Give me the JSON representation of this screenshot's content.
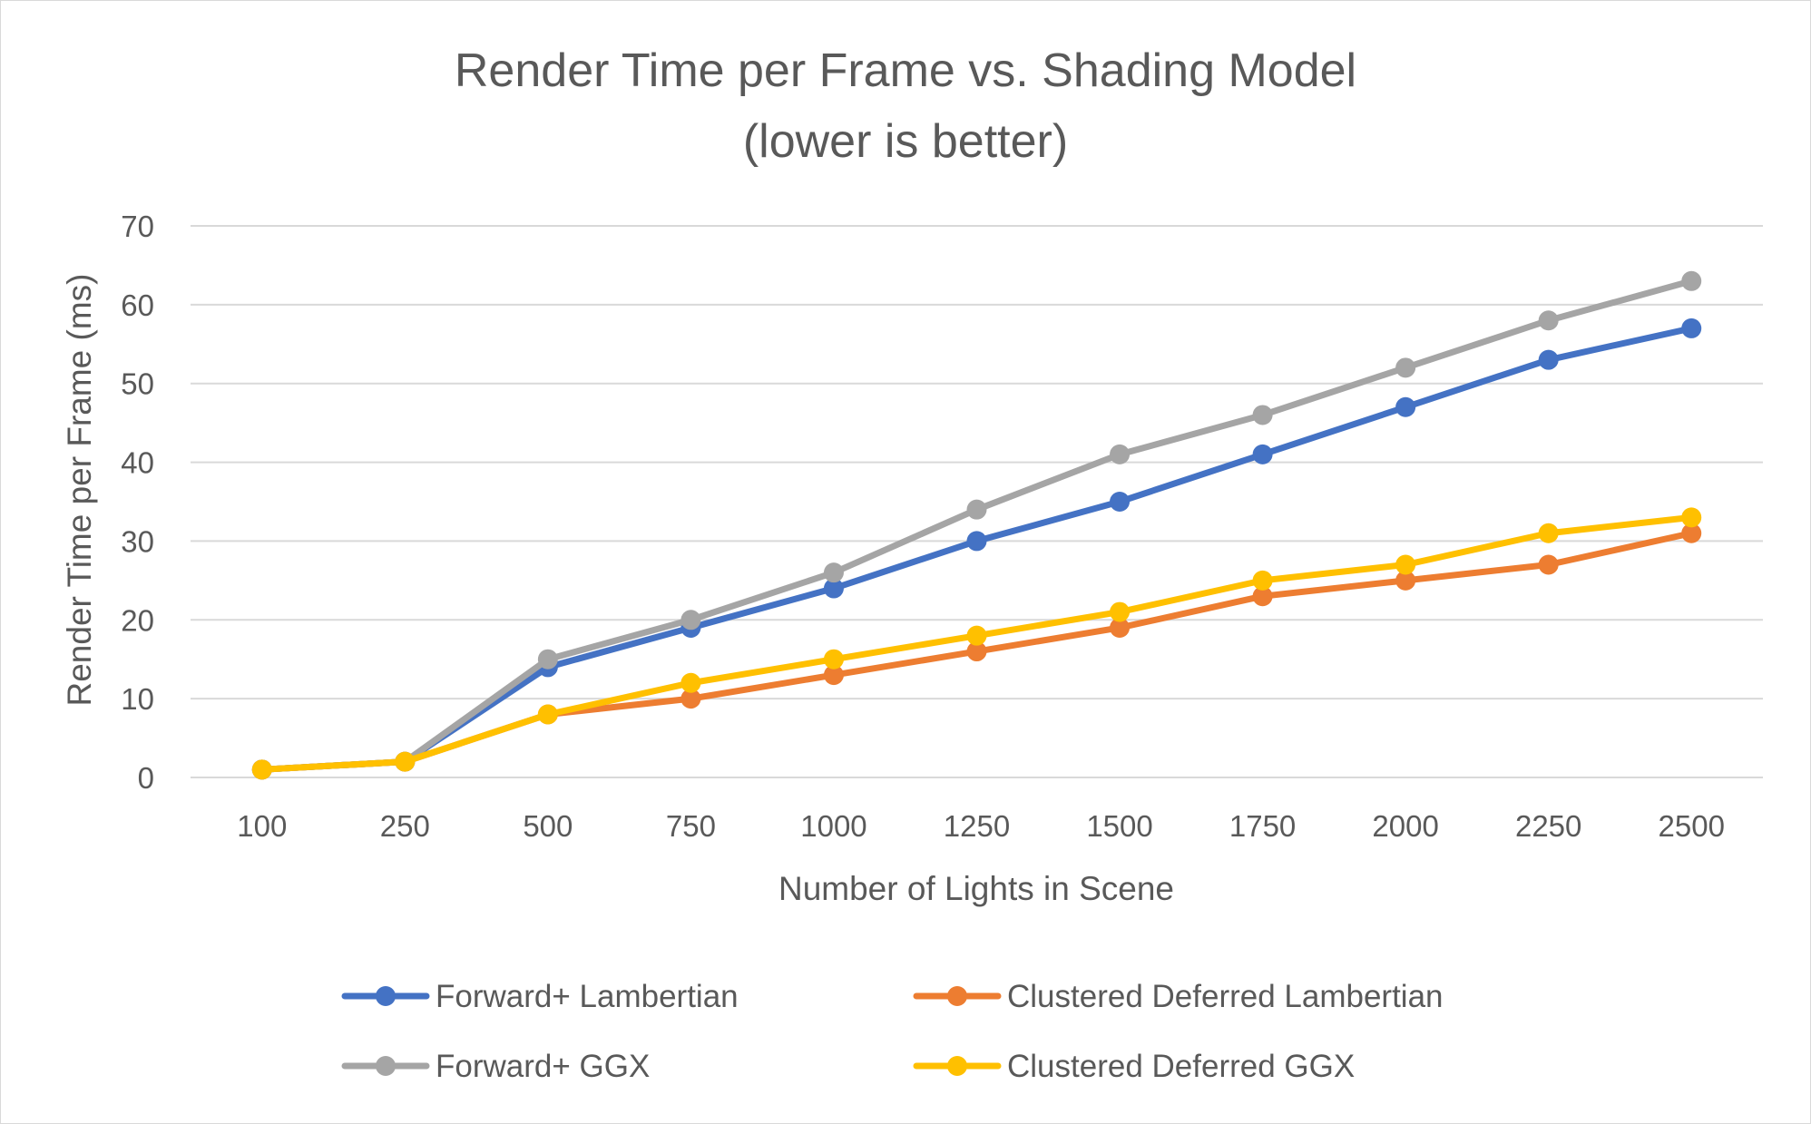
{
  "chart_data": {
    "type": "line",
    "title": "Render Time per Frame vs. Shading Model",
    "subtitle": "(lower is better)",
    "xlabel": "Number of Lights in Scene",
    "ylabel": "Render Time per Frame (ms)",
    "categories": [
      "100",
      "250",
      "500",
      "750",
      "1000",
      "1250",
      "1500",
      "1750",
      "2000",
      "2250",
      "2500"
    ],
    "ylim": [
      0,
      70
    ],
    "yticks": [
      0,
      10,
      20,
      30,
      40,
      50,
      60,
      70
    ],
    "grid": true,
    "legend_position": "bottom",
    "series": [
      {
        "name": "Forward+ Lambertian",
        "color": "#4472c4",
        "values": [
          1,
          2,
          14,
          19,
          24,
          30,
          35,
          41,
          47,
          53,
          57
        ]
      },
      {
        "name": "Clustered Deferred Lambertian",
        "color": "#ed7d31",
        "values": [
          1,
          2,
          8,
          10,
          13,
          16,
          19,
          23,
          25,
          27,
          31
        ]
      },
      {
        "name": "Forward+ GGX",
        "color": "#a5a5a5",
        "values": [
          1,
          2,
          15,
          20,
          26,
          34,
          41,
          46,
          52,
          58,
          63
        ]
      },
      {
        "name": "Clustered Deferred GGX",
        "color": "#ffc000",
        "values": [
          1,
          2,
          8,
          12,
          15,
          18,
          21,
          25,
          27,
          31,
          33
        ]
      }
    ]
  }
}
